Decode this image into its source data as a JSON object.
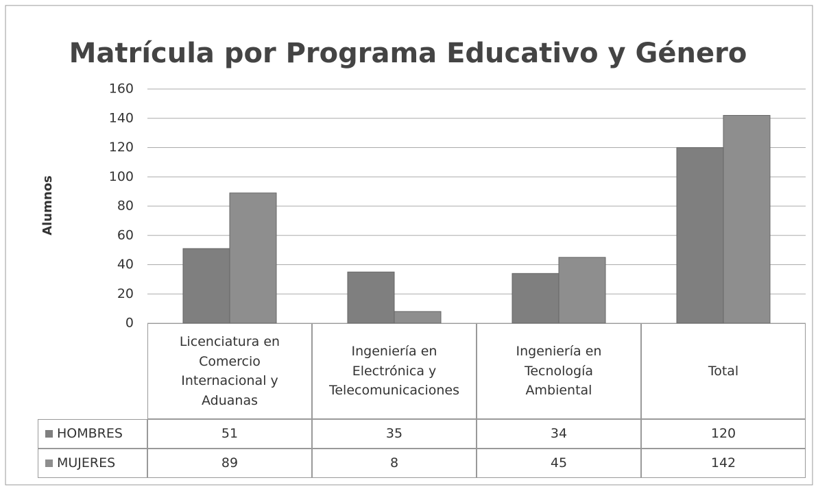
{
  "chart_data": {
    "type": "bar",
    "title": "Matrícula por Programa Educativo y Género",
    "y_label": "Alumnos",
    "categories": [
      "Licenciatura en Comercio Internacional y Aduanas",
      "Ingeniería en Electrónica y Telecomunicaciones",
      "Ingeniería en Tecnología Ambiental",
      "Total"
    ],
    "series": [
      {
        "name": "HOMBRES",
        "color": "#7f7f7f",
        "values": [
          51,
          35,
          34,
          120
        ]
      },
      {
        "name": "MUJERES",
        "color": "#8e8e8e",
        "values": [
          89,
          8,
          45,
          142
        ]
      }
    ],
    "ylim": [
      0,
      160
    ],
    "yticks": [
      0,
      20,
      40,
      60,
      80,
      100,
      120,
      140,
      160
    ],
    "grid": true
  }
}
